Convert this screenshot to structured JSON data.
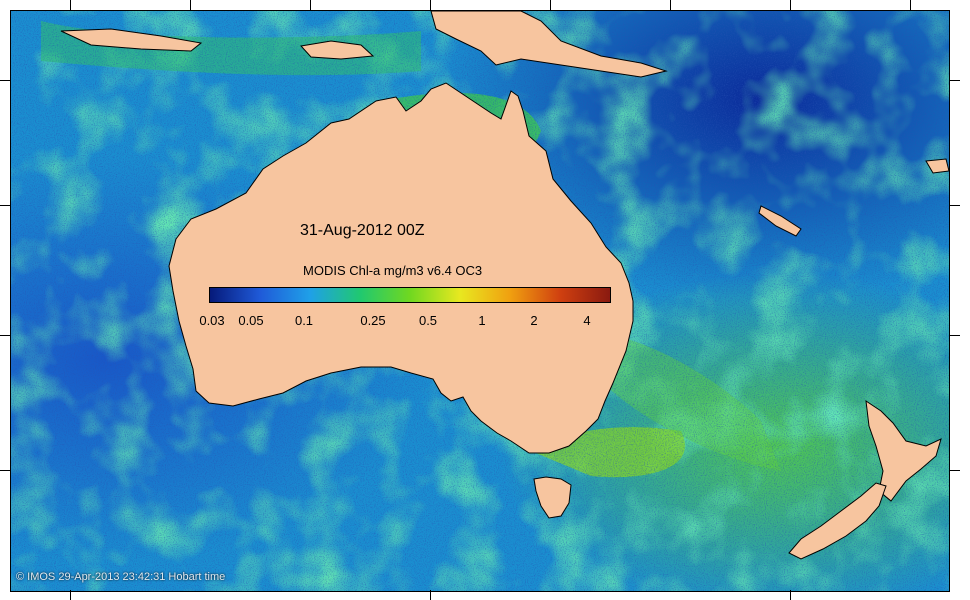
{
  "map": {
    "title": "31-Aug-2012 00Z",
    "colorbar_title": "MODIS Chl-a mg/m3 v6.4 OC3",
    "colorbar_labels": [
      "0.03",
      "0.05",
      "0.1",
      "0.25",
      "0.5",
      "1",
      "2",
      "4"
    ],
    "colorbar_colors": [
      "#061a7a",
      "#1f5ad8",
      "#1fa0e8",
      "#20c870",
      "#70d820",
      "#e8e820",
      "#f0a010",
      "#d04010",
      "#8a1a10"
    ],
    "land_color": "#f7c59f",
    "credit": "© IMOS 29-Apr-2013 23:42:31 Hobart time",
    "land_names": [
      "Australia",
      "Tasmania",
      "New Guinea",
      "New Zealand North Island",
      "New Zealand South Island"
    ]
  }
}
